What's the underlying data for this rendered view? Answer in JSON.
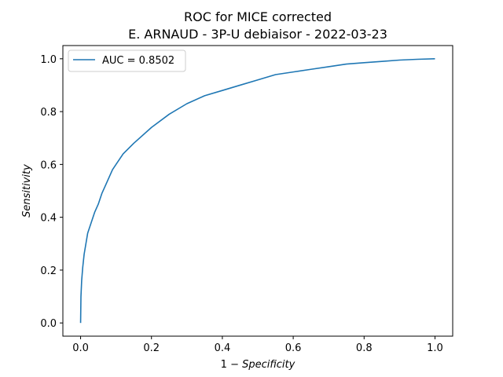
{
  "chart_data": {
    "type": "line",
    "title_line1": "ROC for MICE corrected",
    "title_line2": "E. ARNAUD - 3P-U debiaisor - 2022-03-23",
    "xlabel_prefix": "1 − ",
    "xlabel_italic": "Specificity",
    "ylabel": "Sensitivity",
    "xlim": [
      -0.05,
      1.05
    ],
    "ylim": [
      -0.05,
      1.05
    ],
    "x_ticks": [
      0.0,
      0.2,
      0.4,
      0.6,
      0.8,
      1.0
    ],
    "x_tick_labels": [
      "0.0",
      "0.2",
      "0.4",
      "0.6",
      "0.8",
      "1.0"
    ],
    "y_ticks": [
      0.0,
      0.2,
      0.4,
      0.6,
      0.8,
      1.0
    ],
    "y_tick_labels": [
      "0.0",
      "0.2",
      "0.4",
      "0.6",
      "0.8",
      "1.0"
    ],
    "grid": false,
    "legend_position": "top-left",
    "series": [
      {
        "name": "AUC = 0.8502",
        "color": "#1f77b4",
        "x": [
          0.0,
          0.001,
          0.003,
          0.006,
          0.01,
          0.015,
          0.02,
          0.03,
          0.04,
          0.05,
          0.06,
          0.07,
          0.08,
          0.09,
          0.1,
          0.12,
          0.15,
          0.2,
          0.25,
          0.3,
          0.35,
          0.4,
          0.45,
          0.5,
          0.55,
          0.6,
          0.65,
          0.7,
          0.75,
          0.8,
          0.85,
          0.9,
          0.95,
          1.0
        ],
        "y": [
          0.0,
          0.1,
          0.16,
          0.21,
          0.26,
          0.3,
          0.34,
          0.38,
          0.42,
          0.45,
          0.49,
          0.52,
          0.55,
          0.58,
          0.6,
          0.64,
          0.68,
          0.74,
          0.79,
          0.83,
          0.86,
          0.88,
          0.9,
          0.92,
          0.94,
          0.95,
          0.96,
          0.97,
          0.98,
          0.985,
          0.99,
          0.995,
          0.998,
          1.0
        ]
      }
    ]
  }
}
